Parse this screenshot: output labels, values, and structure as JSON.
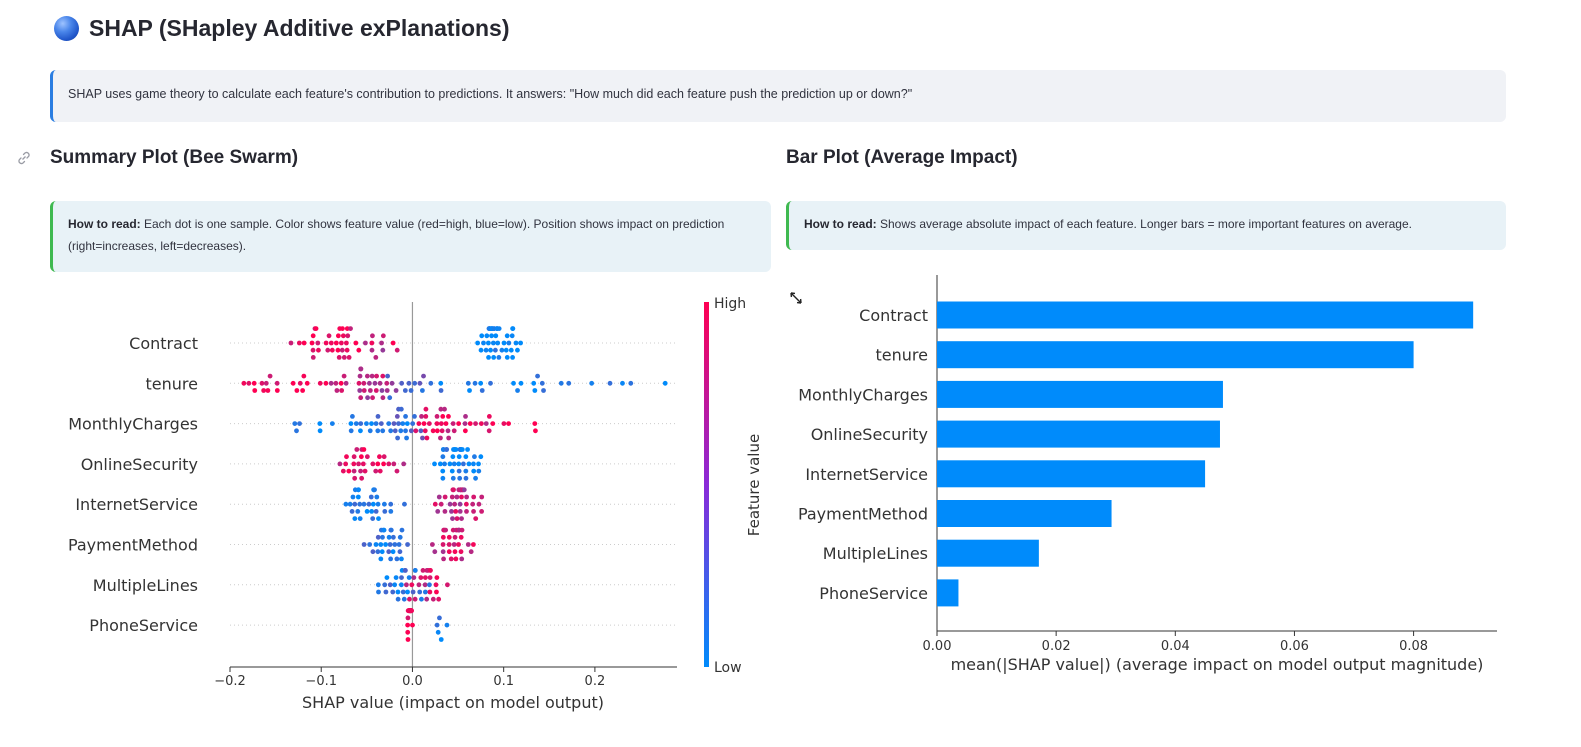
{
  "header": {
    "title": "SHAP (SHapley Additive exPlanations)",
    "icon": "globe-icon"
  },
  "info": {
    "text": "SHAP uses game theory to calculate each feature's contribution to predictions. It answers: \"How much did each feature push the prediction up or down?\""
  },
  "summary_section": {
    "title": "Summary Plot (Bee Swarm)",
    "how_to_label": "How to read:",
    "how_to_text": " Each dot is one sample. Color shows feature value (red=high, blue=low). Position shows impact on prediction (right=increases, left=decreases)."
  },
  "bar_section": {
    "title": "Bar Plot (Average Impact)",
    "how_to_label": "How to read:",
    "how_to_text": " Shows average absolute impact of each feature. Longer bars = more important features on average."
  },
  "colors": {
    "high": "#ff0052",
    "low": "#008bfb",
    "bar": "#008bfb",
    "info_border": "#2a7de1",
    "read_border": "#3fb950"
  },
  "chart_data": [
    {
      "type": "scatter",
      "features": [
        "Contract",
        "tenure",
        "MonthlyCharges",
        "OnlineSecurity",
        "InternetService",
        "PaymentMethod",
        "MultipleLines",
        "PhoneService"
      ],
      "xlabel": "SHAP value (impact on model output)",
      "ylabel": "",
      "xlim": [
        -0.2,
        0.29
      ],
      "xticks": [
        -0.2,
        -0.1,
        0.0,
        0.1,
        0.2
      ],
      "xtick_labels": [
        "−0.2",
        "−0.1",
        "0.0",
        "0.1",
        "0.2"
      ],
      "colorbar": {
        "label": "Feature value",
        "high": "High",
        "low": "Low"
      },
      "series": [
        {
          "feature": "Contract",
          "clusters": [
            {
              "center": -0.08,
              "spread": 0.045,
              "n": 34,
              "value": 0.95
            },
            {
              "center": -0.045,
              "spread": 0.03,
              "n": 10,
              "value": 0.7
            },
            {
              "center": 0.095,
              "spread": 0.025,
              "n": 44,
              "value": 0.05
            }
          ]
        },
        {
          "feature": "tenure",
          "clusters": [
            {
              "center": -0.12,
              "spread": 0.06,
              "n": 22,
              "value": 0.95
            },
            {
              "center": -0.05,
              "spread": 0.035,
              "n": 30,
              "value": 0.7
            },
            {
              "center": 0.0,
              "spread": 0.03,
              "n": 12,
              "value": 0.3
            },
            {
              "center": 0.14,
              "spread": 0.12,
              "n": 22,
              "value": 0.05
            }
          ]
        },
        {
          "feature": "MonthlyCharges",
          "clusters": [
            {
              "center": -0.08,
              "spread": 0.06,
              "n": 14,
              "value": 0.05
            },
            {
              "center": -0.02,
              "spread": 0.04,
              "n": 26,
              "value": 0.25
            },
            {
              "center": 0.04,
              "spread": 0.035,
              "n": 30,
              "value": 0.85
            },
            {
              "center": 0.1,
              "spread": 0.06,
              "n": 10,
              "value": 0.95
            }
          ]
        },
        {
          "feature": "OnlineSecurity",
          "clusters": [
            {
              "center": -0.045,
              "spread": 0.035,
              "n": 30,
              "value": 0.85
            },
            {
              "center": 0.05,
              "spread": 0.025,
              "n": 44,
              "value": 0.05
            }
          ]
        },
        {
          "feature": "InternetService",
          "clusters": [
            {
              "center": -0.04,
              "spread": 0.03,
              "n": 32,
              "value": 0.1
            },
            {
              "center": 0.05,
              "spread": 0.025,
              "n": 38,
              "value": 0.75
            }
          ]
        },
        {
          "feature": "PaymentMethod",
          "clusters": [
            {
              "center": -0.03,
              "spread": 0.03,
              "n": 30,
              "value": 0.15
            },
            {
              "center": 0.045,
              "spread": 0.025,
              "n": 30,
              "value": 0.8
            }
          ]
        },
        {
          "feature": "MultipleLines",
          "clusters": [
            {
              "center": -0.01,
              "spread": 0.025,
              "n": 26,
              "value": 0.15
            },
            {
              "center": 0.015,
              "spread": 0.02,
              "n": 24,
              "value": 0.85
            }
          ]
        },
        {
          "feature": "PhoneService",
          "clusters": [
            {
              "center": -0.003,
              "spread": 0.003,
              "n": 30,
              "value": 0.95
            },
            {
              "center": 0.03,
              "spread": 0.01,
              "n": 5,
              "value": 0.05
            }
          ]
        }
      ]
    },
    {
      "type": "bar",
      "orientation": "horizontal",
      "categories": [
        "Contract",
        "tenure",
        "MonthlyCharges",
        "OnlineSecurity",
        "InternetService",
        "PaymentMethod",
        "MultipleLines",
        "PhoneService"
      ],
      "values": [
        0.09,
        0.08,
        0.048,
        0.0475,
        0.045,
        0.0293,
        0.0171,
        0.0036
      ],
      "xlabel": "mean(|SHAP value|) (average impact on model output magnitude)",
      "ylabel": "",
      "xlim": [
        0,
        0.094
      ],
      "xticks": [
        0.0,
        0.02,
        0.04,
        0.06,
        0.08
      ],
      "xtick_labels": [
        "0.00",
        "0.02",
        "0.04",
        "0.06",
        "0.08"
      ]
    }
  ]
}
